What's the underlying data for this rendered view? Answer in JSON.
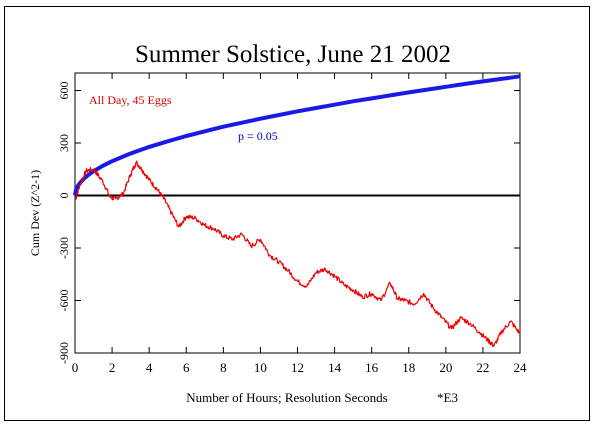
{
  "chart_data": {
    "type": "line",
    "title": "Summer Solstice, June 21 2002",
    "xlabel": "Number of Hours; Resolution Seconds",
    "xlabel_suffix": "*E3",
    "ylabel": "Cum Dev (Z^2-1)",
    "xlim": [
      0,
      24
    ],
    "ylim": [
      -900,
      700
    ],
    "x_ticks": [
      0,
      2,
      4,
      6,
      8,
      10,
      12,
      14,
      16,
      18,
      20,
      22,
      24
    ],
    "x_tick_labels": [
      "0",
      "2",
      "4",
      "6",
      "8",
      "10",
      "12",
      "14",
      "16",
      "18",
      "20",
      "22",
      "24"
    ],
    "y_ticks": [
      -900,
      -600,
      -300,
      0,
      300,
      600
    ],
    "y_tick_labels": [
      "-900",
      "-600",
      "-300",
      "0",
      "300",
      "600"
    ],
    "annotations": [
      {
        "text": "All Day, 45 Eggs",
        "color": "#d40000"
      },
      {
        "text": "p = 0.05",
        "color": "#0000cc"
      }
    ],
    "series": [
      {
        "role": "cumulative deviation",
        "color": "#ee0000",
        "x": [
          0,
          0.3,
          0.6,
          1.0,
          1.5,
          1.9,
          2.2,
          2.6,
          3.0,
          3.3,
          3.6,
          4.0,
          4.4,
          4.8,
          5.2,
          5.6,
          6.0,
          6.5,
          7.0,
          7.5,
          8.0,
          8.5,
          9.0,
          9.5,
          10.0,
          10.5,
          11.0,
          11.5,
          12.0,
          12.5,
          13.0,
          13.5,
          14.0,
          14.5,
          15.0,
          15.5,
          16.0,
          16.5,
          17.0,
          17.4,
          17.8,
          18.3,
          18.8,
          19.3,
          19.8,
          20.3,
          20.8,
          21.3,
          21.8,
          22.3,
          22.6,
          23.0,
          23.5,
          24.0
        ],
        "y": [
          -30,
          70,
          140,
          150,
          80,
          -10,
          -20,
          10,
          120,
          190,
          150,
          90,
          40,
          -20,
          -100,
          -180,
          -120,
          -130,
          -170,
          -190,
          -230,
          -250,
          -220,
          -290,
          -250,
          -340,
          -380,
          -430,
          -490,
          -520,
          -440,
          -420,
          -460,
          -510,
          -540,
          -580,
          -560,
          -600,
          -500,
          -590,
          -600,
          -620,
          -560,
          -640,
          -700,
          -760,
          -700,
          -730,
          -780,
          -830,
          -860,
          -780,
          -720,
          -790
        ]
      },
      {
        "role": "p = 0.05 envelope",
        "color": "#1a1ae6",
        "x": [
          0,
          0.05,
          0.15,
          0.3,
          0.5,
          0.75,
          1,
          1.5,
          2,
          3,
          4,
          5,
          6,
          7,
          8,
          9,
          10,
          11,
          12,
          13,
          14,
          15,
          16,
          17,
          18,
          19,
          20,
          21,
          22,
          23,
          24
        ],
        "y": [
          0,
          31,
          54,
          76,
          98,
          120,
          139,
          170,
          196,
          240,
          278,
          310,
          340,
          367,
          393,
          416,
          439,
          460,
          481,
          500,
          519,
          538,
          555,
          572,
          589,
          605,
          621,
          637,
          652,
          666,
          681
        ]
      }
    ],
    "reference_line": {
      "y": 0,
      "color": "#000000"
    }
  }
}
